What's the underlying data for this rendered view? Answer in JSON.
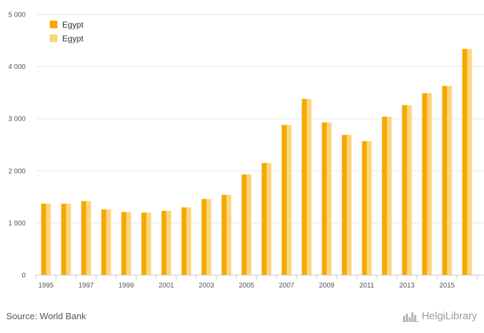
{
  "colors": {
    "series1": "#F5A800",
    "series2": "#FDD57A",
    "grid": "#e6e6e6",
    "axis": "#c8c8c8"
  },
  "chart_data": {
    "type": "bar",
    "categories": [
      "1995",
      "1996",
      "1997",
      "1998",
      "1999",
      "2000",
      "2001",
      "2002",
      "2003",
      "2004",
      "2005",
      "2006",
      "2007",
      "2008",
      "2009",
      "2010",
      "2011",
      "2012",
      "2013",
      "2014",
      "2015",
      "2016"
    ],
    "x_tick_labels": [
      "1995",
      "1997",
      "1999",
      "2001",
      "2003",
      "2005",
      "2007",
      "2009",
      "2011",
      "2013",
      "2015"
    ],
    "y_tick_labels": [
      "0",
      "1 000",
      "2 000",
      "3 000",
      "4 000",
      "5 000"
    ],
    "ylim": [
      0,
      5000
    ],
    "grid": true,
    "legend_position": "top-left",
    "series": [
      {
        "name": "Egypt",
        "values": [
          1370,
          1370,
          1420,
          1260,
          1210,
          1200,
          1230,
          1300,
          1460,
          1540,
          1930,
          2150,
          2880,
          3380,
          2930,
          2690,
          2570,
          3040,
          3260,
          3490,
          3630,
          4340
        ]
      },
      {
        "name": "Egypt",
        "values": [
          1370,
          1370,
          1420,
          1260,
          1210,
          1200,
          1230,
          1300,
          1460,
          1540,
          1930,
          2150,
          2880,
          3380,
          2930,
          2690,
          2570,
          3040,
          3260,
          3490,
          3630,
          4340
        ]
      }
    ]
  },
  "footer": {
    "source": "Source: World Bank",
    "brand": "HelgiLibrary",
    "brand_icon": "skyline-logo-icon"
  }
}
